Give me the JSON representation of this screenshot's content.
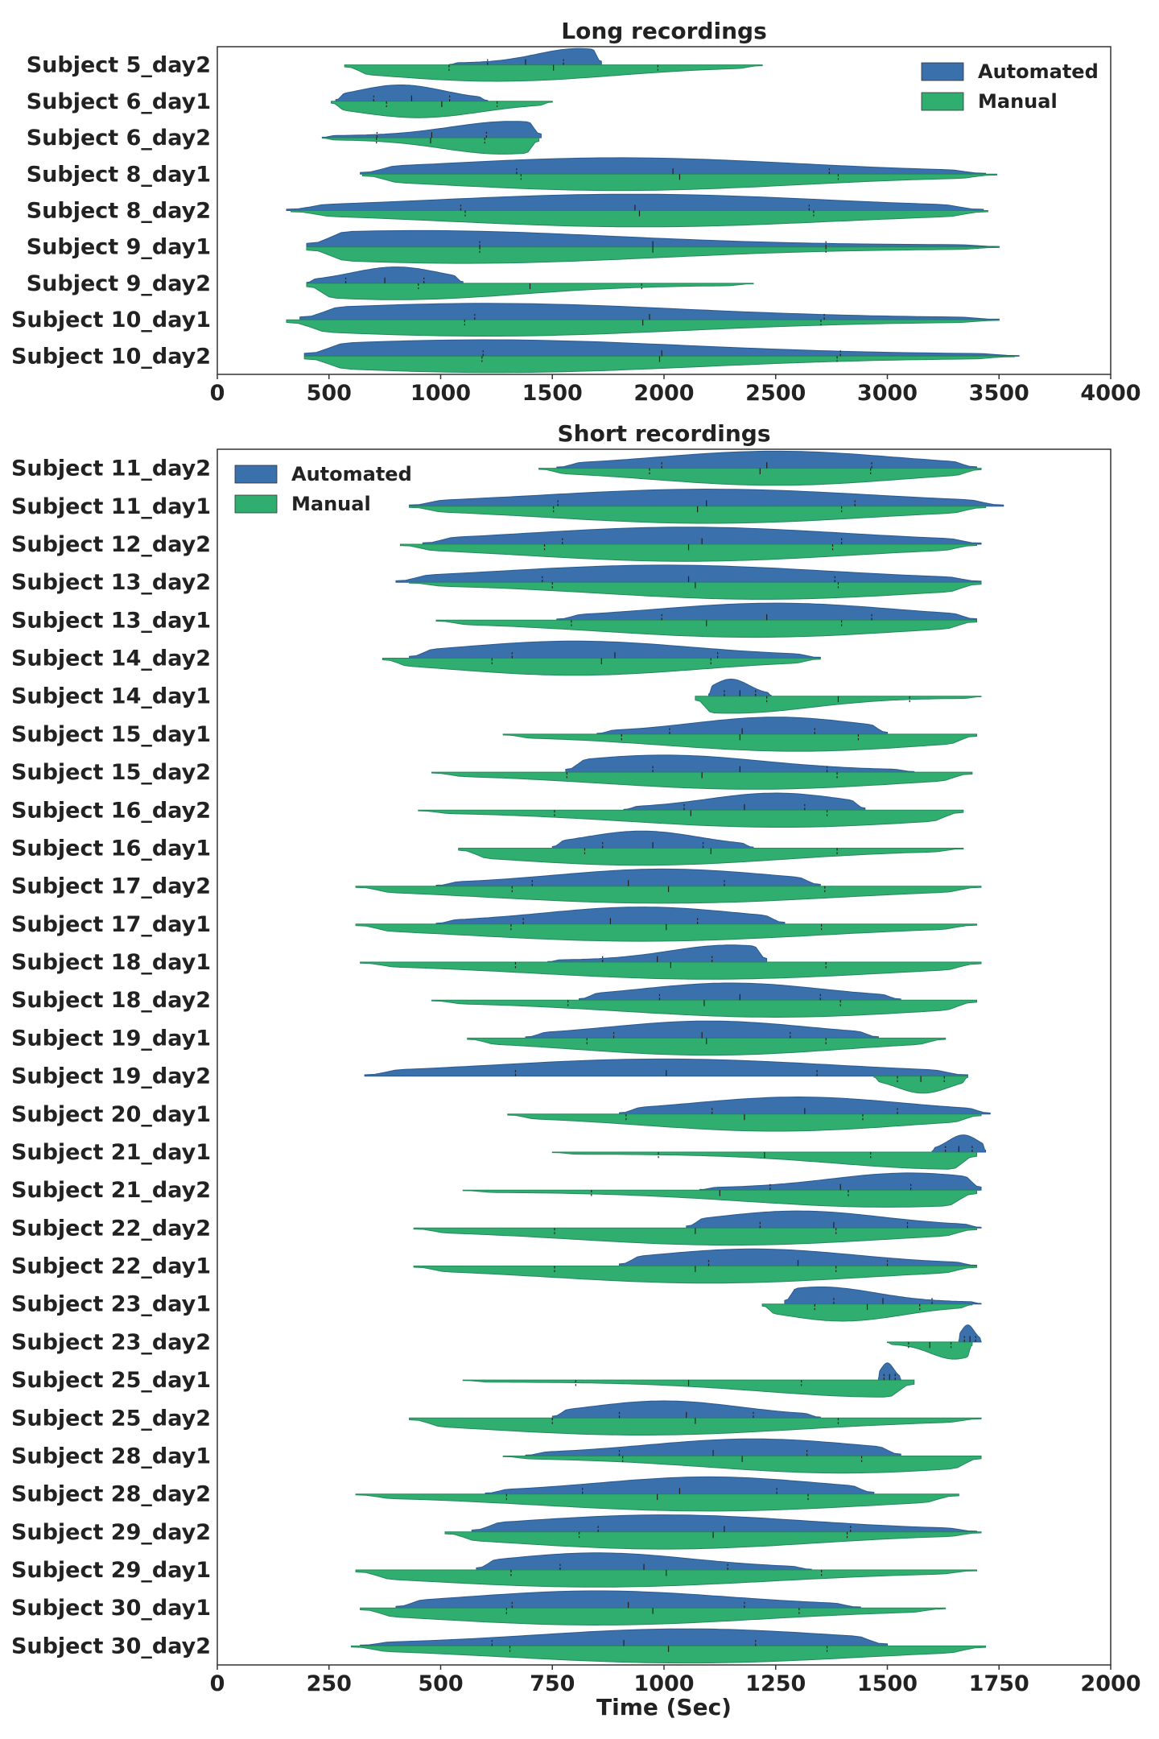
{
  "chart_data": [
    {
      "type": "violin",
      "title": "Long recordings",
      "xlabel": "",
      "xlim": [
        0,
        4000
      ],
      "xticks": [
        0,
        500,
        1000,
        1500,
        2000,
        2500,
        3000,
        3500,
        4000
      ],
      "legend": {
        "placement": "top-right",
        "entries": [
          "Automated",
          "Manual"
        ]
      },
      "colors": {
        "Automated": "#3a70ac",
        "Manual": "#2fae6f"
      },
      "rows": [
        {
          "label": "Subject 5_day2",
          "auto": [
            1040,
            1720,
            1620
          ],
          "manual": [
            570,
            2440,
            1250
          ]
        },
        {
          "label": "Subject 6_day1",
          "auto": [
            530,
            1210,
            820
          ],
          "manual": [
            510,
            1500,
            900
          ]
        },
        {
          "label": "Subject 6_day2",
          "auto": [
            470,
            1450,
            1320
          ],
          "manual": [
            470,
            1440,
            1280
          ]
        },
        {
          "label": "Subject 8_day1",
          "auto": [
            640,
            3440,
            1800
          ],
          "manual": [
            650,
            3490,
            1800
          ]
        },
        {
          "label": "Subject 8_day2",
          "auto": [
            310,
            3430,
            1850
          ],
          "manual": [
            330,
            3450,
            1900
          ]
        },
        {
          "label": "Subject 9_day1",
          "auto": [
            400,
            3500,
            900
          ],
          "manual": [
            400,
            3500,
            1100
          ]
        },
        {
          "label": "Subject 9_day2",
          "auto": [
            400,
            1100,
            800
          ],
          "manual": [
            400,
            2400,
            800
          ]
        },
        {
          "label": "Subject 10_day1",
          "auto": [
            370,
            3500,
            1200
          ],
          "manual": [
            310,
            3500,
            1200
          ]
        },
        {
          "label": "Subject 10_day2",
          "auto": [
            390,
            3590,
            1200
          ],
          "manual": [
            390,
            3570,
            1250
          ]
        }
      ]
    },
    {
      "type": "violin",
      "title": "Short recordings",
      "xlabel": "Time (Sec)",
      "xlim": [
        0,
        2000
      ],
      "xticks": [
        0,
        250,
        500,
        750,
        1000,
        1250,
        1500,
        1750,
        2000
      ],
      "legend": {
        "placement": "top-left",
        "entries": [
          "Automated",
          "Manual"
        ]
      },
      "colors": {
        "Automated": "#3a70ac",
        "Manual": "#2fae6f"
      },
      "rows": [
        {
          "label": "Subject 11_day2",
          "auto": [
            760,
            1700,
            1250
          ],
          "manual": [
            720,
            1710,
            1250
          ]
        },
        {
          "label": "Subject 11_day1",
          "auto": [
            430,
            1760,
            1100
          ],
          "manual": [
            430,
            1720,
            1100
          ]
        },
        {
          "label": "Subject 12_day2",
          "auto": [
            460,
            1710,
            1050
          ],
          "manual": [
            410,
            1700,
            1050
          ]
        },
        {
          "label": "Subject 13_day2",
          "auto": [
            400,
            1710,
            1000
          ],
          "manual": [
            430,
            1710,
            1220
          ]
        },
        {
          "label": "Subject 13_day1",
          "auto": [
            760,
            1700,
            1250
          ],
          "manual": [
            490,
            1700,
            1200
          ]
        },
        {
          "label": "Subject 14_day2",
          "auto": [
            430,
            1350,
            800
          ],
          "manual": [
            370,
            1350,
            800
          ]
        },
        {
          "label": "Subject 14_day1",
          "auto": [
            1100,
            1240,
            1150
          ],
          "manual": [
            1070,
            1710,
            1150
          ]
        },
        {
          "label": "Subject 15_day1",
          "auto": [
            850,
            1500,
            1250
          ],
          "manual": [
            640,
            1700,
            1300
          ]
        },
        {
          "label": "Subject 15_day2",
          "auto": [
            780,
            1560,
            1000
          ],
          "manual": [
            480,
            1690,
            1200
          ]
        },
        {
          "label": "Subject 16_day2",
          "auto": [
            910,
            1450,
            1250
          ],
          "manual": [
            450,
            1670,
            1260
          ]
        },
        {
          "label": "Subject 16_day1",
          "auto": [
            750,
            1200,
            950
          ],
          "manual": [
            540,
            1670,
            950
          ]
        },
        {
          "label": "Subject 17_day2",
          "auto": [
            490,
            1350,
            1000
          ],
          "manual": [
            310,
            1710,
            1000
          ]
        },
        {
          "label": "Subject 17_day1",
          "auto": [
            490,
            1270,
            950
          ],
          "manual": [
            310,
            1700,
            950
          ]
        },
        {
          "label": "Subject 18_day1",
          "auto": [
            740,
            1230,
            1150
          ],
          "manual": [
            320,
            1710,
            1100
          ]
        },
        {
          "label": "Subject 18_day2",
          "auto": [
            810,
            1530,
            1150
          ],
          "manual": [
            480,
            1700,
            1250
          ]
        },
        {
          "label": "Subject 19_day1",
          "auto": [
            690,
            1480,
            1100
          ],
          "manual": [
            560,
            1630,
            1100
          ]
        },
        {
          "label": "Subject 19_day2",
          "auto": [
            330,
            1680,
            1000
          ],
          "manual": [
            1470,
            1680,
            1580
          ]
        },
        {
          "label": "Subject 20_day1",
          "auto": [
            900,
            1730,
            1300
          ],
          "manual": [
            650,
            1710,
            1250
          ]
        },
        {
          "label": "Subject 21_day1",
          "auto": [
            1600,
            1720,
            1670
          ],
          "manual": [
            750,
            1700,
            1650
          ]
        },
        {
          "label": "Subject 21_day2",
          "auto": [
            1080,
            1710,
            1550
          ],
          "manual": [
            550,
            1700,
            1500
          ]
        },
        {
          "label": "Subject 22_day2",
          "auto": [
            1050,
            1710,
            1300
          ],
          "manual": [
            440,
            1700,
            1150
          ]
        },
        {
          "label": "Subject 22_day1",
          "auto": [
            900,
            1700,
            1200
          ],
          "manual": [
            440,
            1700,
            1100
          ]
        },
        {
          "label": "Subject 23_day1",
          "auto": [
            1270,
            1710,
            1350
          ],
          "manual": [
            1220,
            1690,
            1400
          ]
        },
        {
          "label": "Subject 23_day2",
          "auto": [
            1660,
            1710,
            1680
          ],
          "manual": [
            1500,
            1690,
            1650
          ]
        },
        {
          "label": "Subject 25_day1",
          "auto": [
            1480,
            1530,
            1500
          ],
          "manual": [
            550,
            1560,
            1500
          ]
        },
        {
          "label": "Subject 25_day2",
          "auto": [
            750,
            1350,
            1000
          ],
          "manual": [
            430,
            1710,
            950
          ]
        },
        {
          "label": "Subject 28_day1",
          "auto": [
            690,
            1530,
            1200
          ],
          "manual": [
            640,
            1710,
            1400
          ]
        },
        {
          "label": "Subject 28_day2",
          "auto": [
            600,
            1470,
            1100
          ],
          "manual": [
            310,
            1660,
            1100
          ]
        },
        {
          "label": "Subject 29_day2",
          "auto": [
            570,
            1700,
            1000
          ],
          "manual": [
            510,
            1710,
            1000
          ]
        },
        {
          "label": "Subject 29_day1",
          "auto": [
            580,
            1330,
            850
          ],
          "manual": [
            310,
            1700,
            850
          ]
        },
        {
          "label": "Subject 30_day1",
          "auto": [
            400,
            1440,
            850
          ],
          "manual": [
            320,
            1630,
            850
          ]
        },
        {
          "label": "Subject 30_day2",
          "auto": [
            320,
            1500,
            1050
          ],
          "manual": [
            300,
            1720,
            1050
          ]
        }
      ]
    }
  ]
}
